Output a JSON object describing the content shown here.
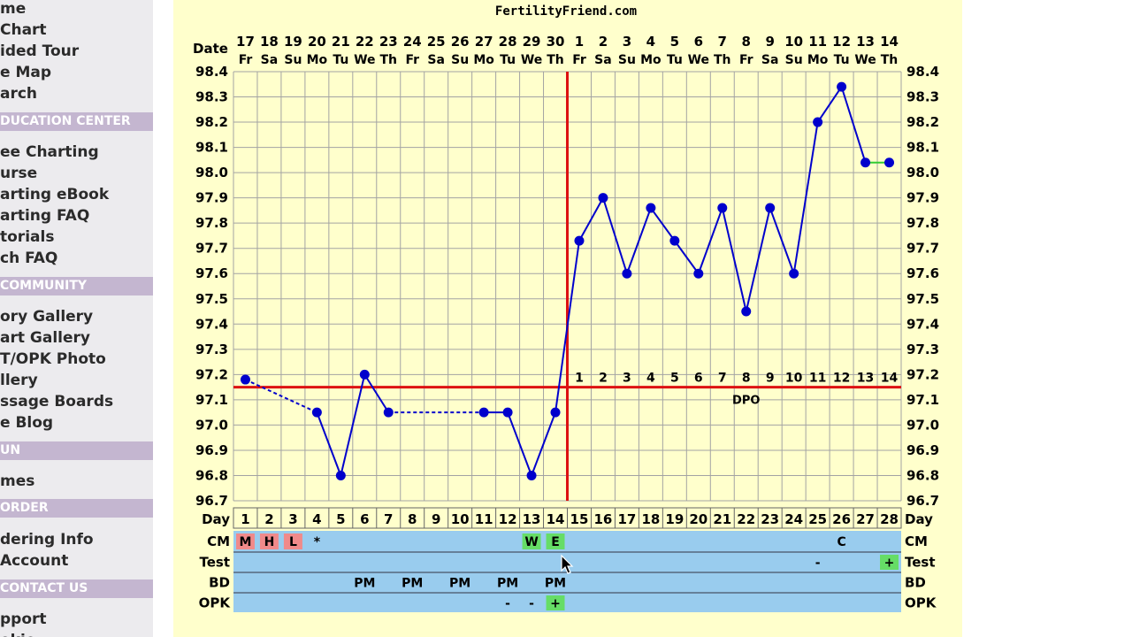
{
  "sidebar": {
    "items_top": [
      "me",
      " Chart",
      "ided Tour",
      "e Map",
      "arch"
    ],
    "header_education": "DUCATION CENTER",
    "items_education": [
      "ee Charting",
      "urse",
      "arting eBook",
      "arting FAQ",
      "torials",
      "ch FAQ"
    ],
    "header_community": "COMMUNITY",
    "items_community": [
      "ory Gallery",
      "art Gallery",
      "T/OPK Photo",
      "llery",
      "ssage Boards",
      "e Blog"
    ],
    "header_fun": "UN",
    "items_fun": [
      "mes"
    ],
    "header_order": "ORDER",
    "items_order": [
      "dering Info",
      " Account"
    ],
    "header_contact": "CONTACT US",
    "items_contact": [
      "pport",
      "okie"
    ]
  },
  "colors": {
    "background": "#ffffcc",
    "grid": "#a3a3a3",
    "line": "#0000cc",
    "coverline": "#dd1111",
    "ovulation_line": "#dd1111",
    "row_fill": "#99ccee",
    "cm_red": "#f08a8a",
    "cm_green": "#66dd66",
    "sidebar_bg": "#ecebee",
    "sidebar_header": "#c4b6d0"
  },
  "chart_data": {
    "type": "line",
    "title": "FertilityFriend.com",
    "date_header": "Date",
    "dates": [
      "17",
      "18",
      "19",
      "20",
      "21",
      "22",
      "23",
      "24",
      "25",
      "26",
      "27",
      "28",
      "29",
      "30",
      "1",
      "2",
      "3",
      "4",
      "5",
      "6",
      "7",
      "8",
      "9",
      "10",
      "11",
      "12",
      "13",
      "14"
    ],
    "weekdays": [
      "Fr",
      "Sa",
      "Su",
      "Mo",
      "Tu",
      "We",
      "Th",
      "Fr",
      "Sa",
      "Su",
      "Mo",
      "Tu",
      "We",
      "Th",
      "Fr",
      "Sa",
      "Su",
      "Mo",
      "Tu",
      "We",
      "Th",
      "Fr",
      "Sa",
      "Su",
      "Mo",
      "Tu",
      "We",
      "Th"
    ],
    "days": [
      1,
      2,
      3,
      4,
      5,
      6,
      7,
      8,
      9,
      10,
      11,
      12,
      13,
      14,
      15,
      16,
      17,
      18,
      19,
      20,
      21,
      22,
      23,
      24,
      25,
      26,
      27,
      28
    ],
    "temps": [
      97.18,
      null,
      null,
      97.05,
      96.8,
      97.2,
      97.05,
      null,
      null,
      null,
      97.05,
      97.05,
      96.8,
      97.05,
      97.73,
      97.9,
      97.6,
      97.86,
      97.73,
      97.6,
      97.86,
      97.45,
      97.86,
      97.6,
      98.2,
      98.34,
      98.04,
      98.04
    ],
    "ylim": [
      96.7,
      98.4
    ],
    "yticks": [
      "96.7",
      "96.8",
      "96.9",
      "97.0",
      "97.1",
      "97.2",
      "97.3",
      "97.4",
      "97.5",
      "97.6",
      "97.7",
      "97.8",
      "97.9",
      "98.0",
      "98.1",
      "98.2",
      "98.3",
      "98.4"
    ],
    "coverline": 97.15,
    "ovulation_day": 14,
    "dpo_numbers": [
      "1",
      "2",
      "3",
      "4",
      "5",
      "6",
      "7",
      "8",
      "9",
      "10",
      "11",
      "12",
      "13",
      "14"
    ],
    "dpo_label": "DPO",
    "row_labels": {
      "day": "Day",
      "cm": "CM",
      "test": "Test",
      "bd": "BD",
      "opk": "OPK"
    },
    "cm": [
      {
        "day": 1,
        "text": "M",
        "color": "red"
      },
      {
        "day": 2,
        "text": "H",
        "color": "red"
      },
      {
        "day": 3,
        "text": "L",
        "color": "red"
      },
      {
        "day": 4,
        "text": "*",
        "color": "none"
      },
      {
        "day": 13,
        "text": "W",
        "color": "green"
      },
      {
        "day": 14,
        "text": "E",
        "color": "green"
      },
      {
        "day": 26,
        "text": "C",
        "color": "none"
      }
    ],
    "test": [
      {
        "day": 25,
        "text": "-",
        "color": "none"
      },
      {
        "day": 28,
        "text": "+",
        "color": "green"
      }
    ],
    "bd": [
      {
        "day": 6,
        "text": "PM"
      },
      {
        "day": 8,
        "text": "PM"
      },
      {
        "day": 10,
        "text": "PM"
      },
      {
        "day": 12,
        "text": "PM"
      },
      {
        "day": 14,
        "text": "PM"
      }
    ],
    "opk": [
      {
        "day": 12,
        "text": "-",
        "color": "none"
      },
      {
        "day": 13,
        "text": "-",
        "color": "none"
      },
      {
        "day": 14,
        "text": "+",
        "color": "green"
      }
    ]
  }
}
